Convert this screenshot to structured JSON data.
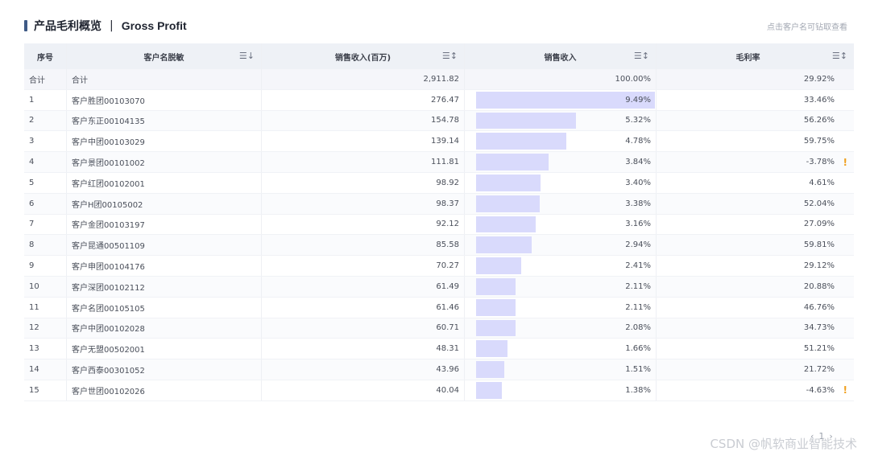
{
  "header": {
    "title": "产品毛利概览",
    "separator": "|",
    "title_en": "Gross Profit",
    "hint": "点击客户名可钻取查看"
  },
  "table": {
    "columns": [
      {
        "label": "序号"
      },
      {
        "label": "客户名脱敏",
        "sort_icon": "☰↓"
      },
      {
        "label": "销售收入(百万)",
        "sort_icon": "☰↕"
      },
      {
        "label": "销售收入",
        "sort_icon": "☰↕"
      },
      {
        "label": "毛利率",
        "sort_icon": "☰↕"
      }
    ],
    "total": {
      "index": "合计",
      "name": "合计",
      "revenue": "2,911.82",
      "share": "100.00%",
      "margin": "29.92%"
    },
    "rows": [
      {
        "index": "1",
        "name": "客户胜团00103070",
        "revenue": "276.47",
        "share": "9.49%",
        "share_value": 9.49,
        "margin": "33.46%",
        "warn": ""
      },
      {
        "index": "2",
        "name": "客户东正00104135",
        "revenue": "154.78",
        "share": "5.32%",
        "share_value": 5.32,
        "margin": "56.26%",
        "warn": ""
      },
      {
        "index": "3",
        "name": "客户中团00103029",
        "revenue": "139.14",
        "share": "4.78%",
        "share_value": 4.78,
        "margin": "59.75%",
        "warn": ""
      },
      {
        "index": "4",
        "name": "客户景团00101002",
        "revenue": "111.81",
        "share": "3.84%",
        "share_value": 3.84,
        "margin": "-3.78%",
        "warn": "!"
      },
      {
        "index": "5",
        "name": "客户红团00102001",
        "revenue": "98.92",
        "share": "3.40%",
        "share_value": 3.4,
        "margin": "4.61%",
        "warn": ""
      },
      {
        "index": "6",
        "name": "客户H团00105002",
        "revenue": "98.37",
        "share": "3.38%",
        "share_value": 3.38,
        "margin": "52.04%",
        "warn": ""
      },
      {
        "index": "7",
        "name": "客户金团00103197",
        "revenue": "92.12",
        "share": "3.16%",
        "share_value": 3.16,
        "margin": "27.09%",
        "warn": ""
      },
      {
        "index": "8",
        "name": "客户昆通00501109",
        "revenue": "85.58",
        "share": "2.94%",
        "share_value": 2.94,
        "margin": "59.81%",
        "warn": ""
      },
      {
        "index": "9",
        "name": "客户申团00104176",
        "revenue": "70.27",
        "share": "2.41%",
        "share_value": 2.41,
        "margin": "29.12%",
        "warn": ""
      },
      {
        "index": "10",
        "name": "客户深团00102112",
        "revenue": "61.49",
        "share": "2.11%",
        "share_value": 2.11,
        "margin": "20.88%",
        "warn": ""
      },
      {
        "index": "11",
        "name": "客户名团00105105",
        "revenue": "61.46",
        "share": "2.11%",
        "share_value": 2.11,
        "margin": "46.76%",
        "warn": ""
      },
      {
        "index": "12",
        "name": "客户中团00102028",
        "revenue": "60.71",
        "share": "2.08%",
        "share_value": 2.08,
        "margin": "34.73%",
        "warn": ""
      },
      {
        "index": "13",
        "name": "客户无盟00502001",
        "revenue": "48.31",
        "share": "1.66%",
        "share_value": 1.66,
        "margin": "51.21%",
        "warn": ""
      },
      {
        "index": "14",
        "name": "客户西泰00301052",
        "revenue": "43.96",
        "share": "1.51%",
        "share_value": 1.51,
        "margin": "21.72%",
        "warn": ""
      },
      {
        "index": "15",
        "name": "客户世团00102026",
        "revenue": "40.04",
        "share": "1.38%",
        "share_value": 1.38,
        "margin": "-4.63%",
        "warn": "!"
      }
    ],
    "bar_max": 9.49,
    "bar_color": "#d9dafc",
    "warn_color": "#f0a020"
  },
  "pager": {
    "prev": "‹",
    "page": "1",
    "next": "›"
  },
  "watermark": "CSDN @帆软商业智能技术"
}
